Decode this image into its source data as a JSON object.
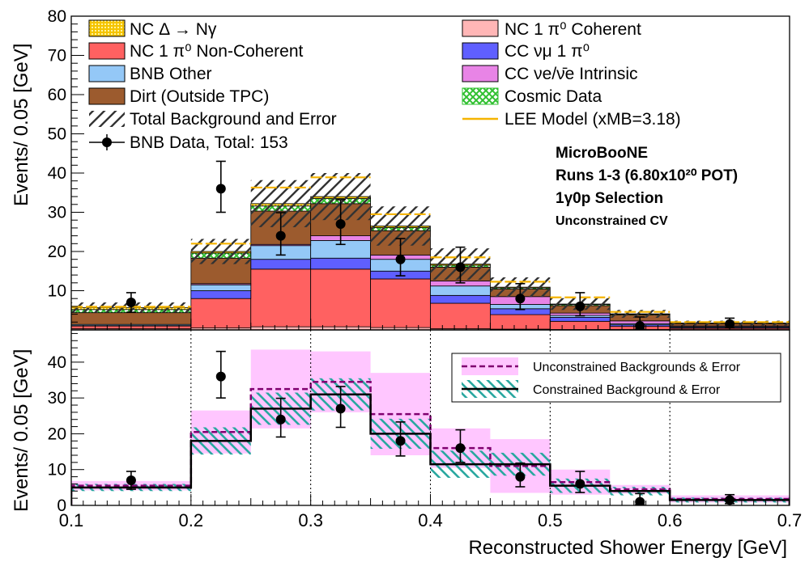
{
  "colors": {
    "nc_delta": "#f5c400",
    "nc_pi0_coh": "#ffb6b6",
    "nc_pi0_noncoh": "#ff6161",
    "cc_numu_pi0": "#5f5fff",
    "bnb_other": "#94c8f7",
    "cc_nue": "#e884e6",
    "dirt": "#9c5b2e",
    "cosmic": "#30c030",
    "lee": "#f5b400",
    "unconstrained_band": "#ffc6ff",
    "unconstrained_line": "#800070",
    "constrained_hatch": "#2aa8a0",
    "constrained_line": "#000000"
  },
  "legend_top": {
    "nc_delta": "NC Δ → Nγ",
    "nc_pi0_coh": "NC 1 π⁰ Coherent",
    "nc_pi0_noncoh": "NC 1 π⁰ Non-Coherent",
    "cc_numu_pi0": "CC νμ 1 π⁰",
    "bnb_other": "BNB Other",
    "cc_nue": "CC νe/ν̄e Intrinsic",
    "dirt": "Dirt (Outside TPC)",
    "cosmic": "Cosmic Data",
    "total_bkg": "Total Background and Error",
    "lee": "LEE Model (xMB=3.18)",
    "data": "BNB Data, Total: 153"
  },
  "labels_top": {
    "experiment": "MicroBooNE",
    "runs": "Runs 1-3 (6.80x10²⁰ POT)",
    "selection": "1γ0p Selection",
    "cv": "Unconstrained CV"
  },
  "legend_bottom": {
    "unconstrained": "Unconstrained Backgrounds & Error",
    "constrained": "Constrained Background & Error"
  },
  "axes": {
    "top_ylabel": "Events/ 0.05 [GeV]",
    "bottom_ylabel": "Events/ 0.05 [GeV]",
    "xlabel": "Reconstructed Shower Energy [GeV]",
    "x_ticks": [
      "0.1",
      "0.2",
      "0.3",
      "0.4",
      "0.5",
      "0.6",
      "0.7"
    ],
    "top_y_ticks": [
      "10",
      "20",
      "30",
      "40",
      "50",
      "60",
      "70",
      "80"
    ],
    "bottom_y_ticks": [
      "0",
      "10",
      "20",
      "30",
      "40"
    ]
  },
  "chart_data": [
    {
      "type": "bar",
      "subtype": "stacked-histogram",
      "xlim": [
        0.1,
        0.7
      ],
      "ylim": [
        0,
        80
      ],
      "bin_edges": [
        0.1,
        0.2,
        0.25,
        0.3,
        0.35,
        0.4,
        0.45,
        0.5,
        0.55,
        0.6,
        0.7
      ],
      "series": [
        {
          "key": "nc_delta_coh_floor",
          "name": "NC 1 π⁰ Coherent",
          "values": [
            0.3,
            0.5,
            0.8,
            0.8,
            0.6,
            0.3,
            0.2,
            0.1,
            0.1,
            0.05
          ]
        },
        {
          "key": "nc_pi0_noncoh",
          "name": "NC 1 π⁰ Non-Coherent",
          "values": [
            0.7,
            7.5,
            14.7,
            14.7,
            12.4,
            6.5,
            3.7,
            2.1,
            0.8,
            0.35
          ]
        },
        {
          "key": "cc_numu_pi0",
          "name": "CC νμ 1 π⁰",
          "values": [
            0.1,
            2.0,
            2.5,
            2.8,
            2.0,
            2.0,
            1.5,
            1.0,
            0.4,
            0.2
          ]
        },
        {
          "key": "bnb_other",
          "name": "BNB Other",
          "values": [
            0.3,
            1.5,
            3.5,
            4.5,
            3.0,
            2.4,
            1.1,
            0.5,
            0.3,
            0.2
          ]
        },
        {
          "key": "cc_nue",
          "name": "CC νe/ν̄e Intrinsic",
          "values": [
            0.0,
            0.3,
            0.3,
            1.2,
            1.1,
            1.3,
            2.0,
            0.6,
            0.7,
            0.2
          ]
        },
        {
          "key": "dirt",
          "name": "Dirt (Outside TPC)",
          "values": [
            3.0,
            6.5,
            8.5,
            8.2,
            6.2,
            3.5,
            1.9,
            1.9,
            1.5,
            0.6
          ]
        },
        {
          "key": "cosmic",
          "name": "Cosmic Data",
          "values": [
            0.8,
            1.3,
            1.3,
            1.3,
            0.8,
            0.5,
            0.3,
            0.3,
            0.2,
            0.1
          ]
        },
        {
          "key": "nc_delta",
          "name": "NC Δ → Nγ",
          "values": [
            0.5,
            0.4,
            0.6,
            0.5,
            0.4,
            0.3,
            0.2,
            0.1,
            0.1,
            0.05
          ]
        }
      ],
      "total_background": [
        5.7,
        20.0,
        32.2,
        34.0,
        26.5,
        16.8,
        10.9,
        6.6,
        4.1,
        1.75
      ],
      "total_background_error": [
        1.3,
        3.2,
        6.0,
        6.0,
        5.0,
        4.0,
        2.5,
        1.5,
        1.0,
        0.6
      ],
      "lee_model": [
        5.9,
        22.0,
        36.3,
        38.9,
        29.5,
        18.5,
        12.3,
        8.3,
        4.6,
        2.0
      ],
      "data": {
        "x": [
          0.15,
          0.225,
          0.275,
          0.325,
          0.375,
          0.425,
          0.475,
          0.525,
          0.575,
          0.65
        ],
        "y": [
          7,
          36,
          24,
          27,
          18,
          16,
          8,
          6,
          1,
          1.5
        ],
        "err_low": [
          2.5,
          6.0,
          4.9,
          5.2,
          4.2,
          4.0,
          2.8,
          2.4,
          0.8,
          1.0
        ],
        "err_high": [
          2.5,
          7.0,
          5.9,
          6.2,
          5.3,
          5.1,
          3.8,
          3.5,
          2.3,
          1.5
        ]
      }
    },
    {
      "type": "line",
      "subtype": "step-histogram-with-bands",
      "xlim": [
        0.1,
        0.7
      ],
      "ylim": [
        0,
        49
      ],
      "bin_edges": [
        0.1,
        0.2,
        0.25,
        0.3,
        0.35,
        0.4,
        0.45,
        0.5,
        0.55,
        0.6,
        0.7
      ],
      "series": [
        {
          "name": "Unconstrained Backgrounds & Error",
          "values": [
            5.5,
            20.5,
            32.5,
            34.5,
            25.5,
            16.0,
            11.0,
            6.5,
            4.5,
            1.8
          ],
          "err": [
            1.3,
            6.0,
            11.0,
            8.5,
            11.5,
            5.5,
            7.5,
            3.5,
            1.2,
            1.0
          ]
        },
        {
          "name": "Constrained Background & Error",
          "values": [
            5.0,
            18.0,
            27.0,
            31.0,
            20.0,
            11.5,
            11.5,
            5.5,
            4.0,
            1.5
          ],
          "err": [
            1.0,
            3.8,
            4.5,
            4.5,
            4.2,
            3.8,
            3.2,
            2.0,
            1.2,
            0.7
          ]
        }
      ],
      "data": {
        "x": [
          0.15,
          0.225,
          0.275,
          0.325,
          0.375,
          0.425,
          0.475,
          0.525,
          0.575,
          0.65
        ],
        "y": [
          7,
          36,
          24,
          27,
          18,
          16,
          8,
          6,
          1,
          1.5
        ],
        "err_low": [
          2.5,
          6.0,
          4.9,
          5.2,
          4.2,
          4.0,
          2.8,
          2.4,
          0.8,
          1.0
        ],
        "err_high": [
          2.5,
          7.0,
          5.9,
          6.2,
          5.3,
          5.1,
          3.8,
          3.5,
          2.3,
          1.5
        ]
      }
    }
  ]
}
